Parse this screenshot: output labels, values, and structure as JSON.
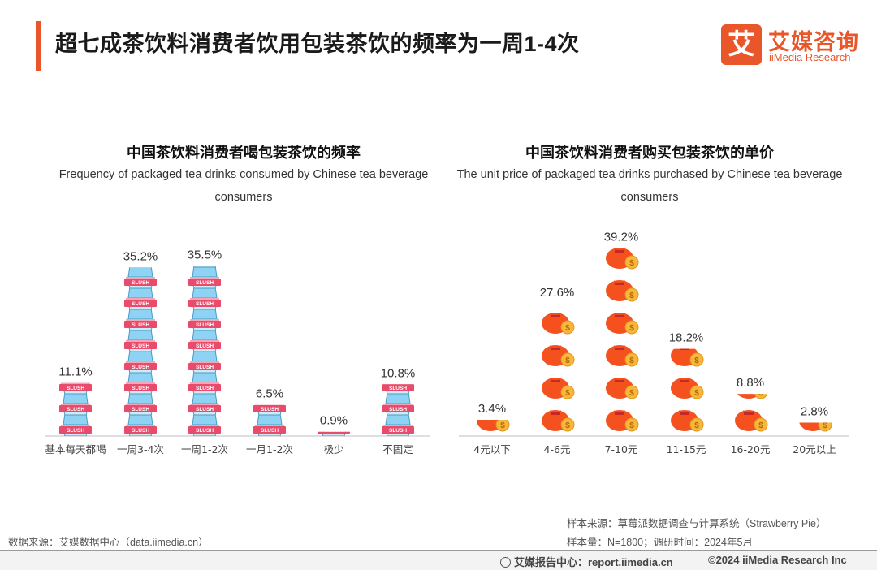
{
  "page": {
    "title": "超七成茶饮料消费者饮用包装茶饮的频率为一周1-4次"
  },
  "logo": {
    "mark": "艾",
    "cn": "艾媒咨询",
    "en": "iiMedia Research"
  },
  "colors": {
    "accent": "#e8562a",
    "money_bag": "#f4511e",
    "coin": "#f6b73c",
    "cup_lid": "#8fd3f4",
    "cup_label": "#e84b6c"
  },
  "chart_data": [
    {
      "type": "bar",
      "title": "中国茶饮料消费者喝包装茶饮的频率",
      "subtitle": "Frequency of packaged tea drinks consumed by Chinese tea beverage consumers",
      "categories": [
        "基本每天都喝",
        "一周3-4次",
        "一周1-2次",
        "一月1-2次",
        "极少",
        "不固定"
      ],
      "values": [
        11.1,
        35.2,
        35.5,
        6.5,
        0.9,
        10.8
      ],
      "labels": [
        "11.1%",
        "35.2%",
        "35.5%",
        "6.5%",
        "0.9%",
        "10.8%"
      ],
      "unit": "%",
      "ylim": [
        0,
        40
      ],
      "icon": "slush-cup-icon"
    },
    {
      "type": "bar",
      "title": "中国茶饮料消费者购买包装茶饮的单价",
      "subtitle": "The unit price of packaged tea drinks purchased by Chinese tea beverage consumers",
      "categories": [
        "4元以下",
        "4-6元",
        "7-10元",
        "11-15元",
        "16-20元",
        "20元以上"
      ],
      "values": [
        3.4,
        27.6,
        39.2,
        18.2,
        8.8,
        2.8
      ],
      "labels": [
        "3.4%",
        "27.6%",
        "39.2%",
        "18.2%",
        "8.8%",
        "2.8%"
      ],
      "unit": "%",
      "ylim": [
        0,
        40
      ],
      "icon": "money-bag-icon"
    }
  ],
  "footer": {
    "data_source": "数据来源：艾媒数据中心（data.iimedia.cn）",
    "sample_source": "样本来源：草莓派数据调查与计算系统（Strawberry Pie）",
    "sample_info": "样本量：N=1800；调研时间：2024年5月",
    "site": "艾媒报告中心：report.iimedia.cn",
    "copyright": "©2024  iiMedia Research Inc"
  }
}
